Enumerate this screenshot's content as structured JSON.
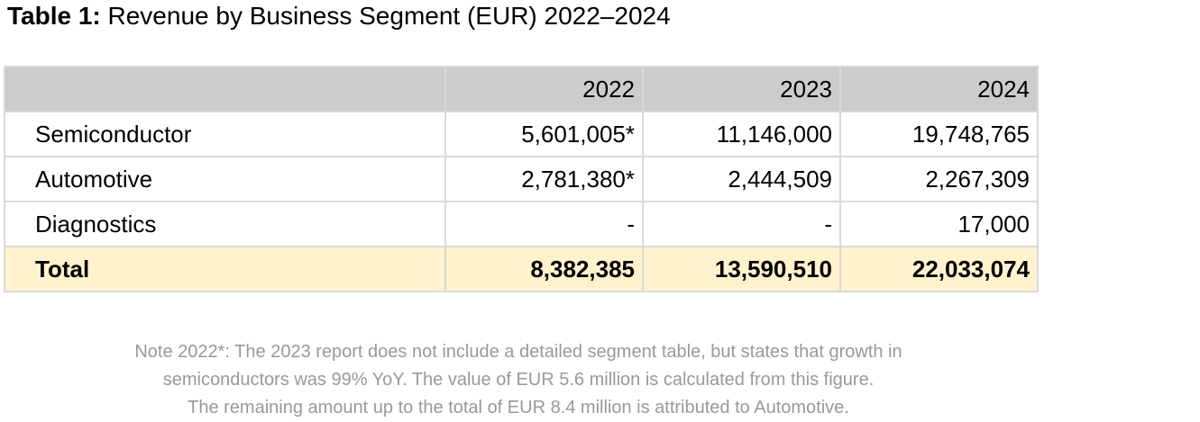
{
  "title": {
    "label": "Table 1:",
    "text": "Revenue by Business Segment (EUR) 2022–2024"
  },
  "table": {
    "corner": "",
    "years": [
      "2022",
      "2023",
      "2024"
    ],
    "rows": [
      {
        "name": "Semiconductor",
        "values": [
          "5,601,005*",
          "11,146,000",
          "19,748,765"
        ]
      },
      {
        "name": "Automotive",
        "values": [
          "2,781,380*",
          "2,444,509",
          "2,267,309"
        ]
      },
      {
        "name": "Diagnostics",
        "values": [
          "-",
          "-",
          "17,000"
        ]
      }
    ],
    "total": {
      "name": "Total",
      "values": [
        "8,382,385",
        "13,590,510",
        "22,033,074"
      ]
    }
  },
  "note": {
    "lines": [
      "Note 2022*: The 2023 report does not include a detailed segment table, but states that growth in",
      "semiconductors was 99% YoY. The value of EUR 5.6 million is calculated from this figure.",
      "The remaining amount up to the total of EUR 8.4 million is attributed to Automotive."
    ]
  },
  "colors": {
    "header_bg": "#cccccc",
    "total_bg": "#fff2cc",
    "grid": "#d9d9d9",
    "note_text": "#999999"
  }
}
